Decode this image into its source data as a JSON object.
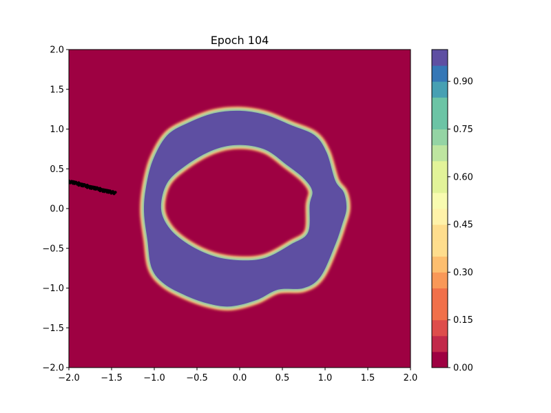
{
  "chart_data": {
    "type": "heatmap",
    "title": "Epoch 104",
    "xlabel": "",
    "ylabel": "",
    "xlim": [
      -2.0,
      2.0
    ],
    "ylim": [
      -2.0,
      2.0
    ],
    "x_ticks": [
      -2.0,
      -1.5,
      -1.0,
      -0.5,
      0.0,
      0.5,
      1.0,
      1.5,
      2.0
    ],
    "y_ticks": [
      -2.0,
      -1.5,
      -1.0,
      -0.5,
      0.0,
      0.5,
      1.0,
      1.5,
      2.0
    ],
    "x_tick_labels": [
      "−2.0",
      "−1.5",
      "−1.0",
      "−0.5",
      "0.0",
      "0.5",
      "1.0",
      "1.5",
      "2.0"
    ],
    "y_tick_labels": [
      "−2.0",
      "−1.5",
      "−1.0",
      "−0.5",
      "0.0",
      "0.5",
      "1.0",
      "1.5",
      "2.0"
    ],
    "grid": false,
    "colorbar": {
      "cmap": "Spectral",
      "range": [
        0.0,
        1.0
      ],
      "levels": 20,
      "colors": [
        "#9e0142",
        "#c2294a",
        "#de4d4b",
        "#f1704a",
        "#f99858",
        "#fdbe6f",
        "#fedd8d",
        "#fff2a9",
        "#f8fbb0",
        "#e2f399",
        "#bee5a0",
        "#94d4a4",
        "#6cc4a5",
        "#47a0b3",
        "#3577b6",
        "#5e4fa2"
      ],
      "ticks": [
        0.0,
        0.15,
        0.3,
        0.45,
        0.6,
        0.75,
        0.9
      ],
      "tick_labels": [
        "0.00",
        "0.15",
        "0.30",
        "0.45",
        "0.60",
        "0.75",
        "0.90"
      ]
    },
    "regions": {
      "background_value": 0.0,
      "ring_value": 1.0,
      "outer_boundary": [
        [
          1.25,
          0.0
        ],
        [
          1.22,
          0.2
        ],
        [
          1.12,
          0.35
        ],
        [
          1.02,
          0.7
        ],
        [
          0.88,
          0.92
        ],
        [
          0.6,
          1.05
        ],
        [
          0.3,
          1.18
        ],
        [
          0.0,
          1.23
        ],
        [
          -0.3,
          1.2
        ],
        [
          -0.6,
          1.08
        ],
        [
          -0.85,
          0.92
        ],
        [
          -1.02,
          0.6
        ],
        [
          -1.1,
          0.25
        ],
        [
          -1.12,
          -0.05
        ],
        [
          -1.08,
          -0.4
        ],
        [
          -1.03,
          -0.75
        ],
        [
          -0.88,
          -0.95
        ],
        [
          -0.62,
          -1.1
        ],
        [
          -0.35,
          -1.2
        ],
        [
          -0.1,
          -1.23
        ],
        [
          0.2,
          -1.15
        ],
        [
          0.45,
          -1.02
        ],
        [
          0.75,
          -1.0
        ],
        [
          0.95,
          -0.85
        ],
        [
          1.12,
          -0.45
        ],
        [
          1.2,
          -0.2
        ]
      ],
      "inner_boundary": [
        [
          0.85,
          0.22
        ],
        [
          0.75,
          0.38
        ],
        [
          0.55,
          0.55
        ],
        [
          0.3,
          0.74
        ],
        [
          0.0,
          0.8
        ],
        [
          -0.3,
          0.74
        ],
        [
          -0.62,
          0.55
        ],
        [
          -0.85,
          0.32
        ],
        [
          -0.92,
          0.0
        ],
        [
          -0.82,
          -0.25
        ],
        [
          -0.6,
          -0.45
        ],
        [
          -0.3,
          -0.6
        ],
        [
          0.0,
          -0.65
        ],
        [
          0.3,
          -0.62
        ],
        [
          0.6,
          -0.45
        ],
        [
          0.8,
          -0.3
        ],
        [
          0.82,
          0.05
        ]
      ]
    },
    "scatter_points": [
      [
        -2.0,
        0.34
      ],
      [
        -1.95,
        0.33
      ],
      [
        -1.9,
        0.31
      ],
      [
        -1.85,
        0.3
      ],
      [
        -1.8,
        0.28
      ],
      [
        -1.75,
        0.27
      ],
      [
        -1.7,
        0.26
      ],
      [
        -1.65,
        0.24
      ],
      [
        -1.6,
        0.23
      ],
      [
        -1.55,
        0.22
      ],
      [
        -1.52,
        0.21
      ]
    ],
    "scatter_color": "#000000"
  }
}
